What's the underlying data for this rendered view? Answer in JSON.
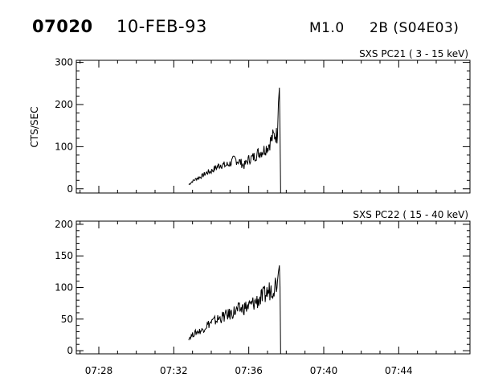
{
  "header": {
    "event_id": "07020",
    "date": "10-FEB-93",
    "flare_class": "M1.0",
    "optical_class": "2B (S04E03)"
  },
  "colors": {
    "ink": "#000000",
    "background": "#ffffff"
  },
  "chart_data": [
    {
      "type": "line",
      "panel_label": "SXS PC21  (  3 - 15 keV)",
      "ylabel": "CTS/SEC",
      "ylim": [
        -10,
        305
      ],
      "yticks": [
        0,
        100,
        200,
        300
      ],
      "xlim": [
        "07:26:48",
        "07:47:48"
      ],
      "xticks": [
        "07:28",
        "07:32",
        "07:36",
        "07:40",
        "07:44"
      ],
      "grid": false,
      "series": [
        {
          "x": [
            "07:32:48",
            "07:33:00",
            "07:33:15",
            "07:33:30",
            "07:33:45",
            "07:34:00",
            "07:34:15",
            "07:34:30",
            "07:34:45",
            "07:35:00",
            "07:35:15",
            "07:35:30",
            "07:35:45",
            "07:36:00",
            "07:36:15",
            "07:36:30",
            "07:36:45",
            "07:37:00",
            "07:37:15",
            "07:37:25",
            "07:37:32",
            "07:37:35",
            "07:37:38",
            "07:37:40",
            "07:37:42"
          ],
          "values": [
            10,
            18,
            25,
            30,
            38,
            42,
            50,
            58,
            55,
            60,
            70,
            65,
            55,
            70,
            75,
            85,
            90,
            100,
            120,
            130,
            125,
            205,
            240,
            130,
            0
          ]
        }
      ]
    },
    {
      "type": "line",
      "panel_label": "SXS PC22  ( 15 - 40 keV)",
      "ylabel": "",
      "ylim": [
        -5,
        205
      ],
      "yticks": [
        0,
        50,
        100,
        150,
        200
      ],
      "xlim": [
        "07:26:48",
        "07:47:48"
      ],
      "xticks": [
        "07:28",
        "07:32",
        "07:36",
        "07:40",
        "07:44"
      ],
      "grid": false,
      "series": [
        {
          "x": [
            "07:32:48",
            "07:33:00",
            "07:33:15",
            "07:33:30",
            "07:33:45",
            "07:34:00",
            "07:34:15",
            "07:34:30",
            "07:34:45",
            "07:35:00",
            "07:35:15",
            "07:35:30",
            "07:35:45",
            "07:36:00",
            "07:36:15",
            "07:36:30",
            "07:36:45",
            "07:37:00",
            "07:37:15",
            "07:37:25",
            "07:37:32",
            "07:37:35",
            "07:37:38",
            "07:37:40",
            "07:37:42"
          ],
          "values": [
            20,
            25,
            30,
            32,
            40,
            45,
            48,
            52,
            55,
            58,
            62,
            65,
            68,
            70,
            75,
            80,
            85,
            92,
            100,
            105,
            110,
            125,
            135,
            100,
            0
          ]
        }
      ]
    }
  ]
}
